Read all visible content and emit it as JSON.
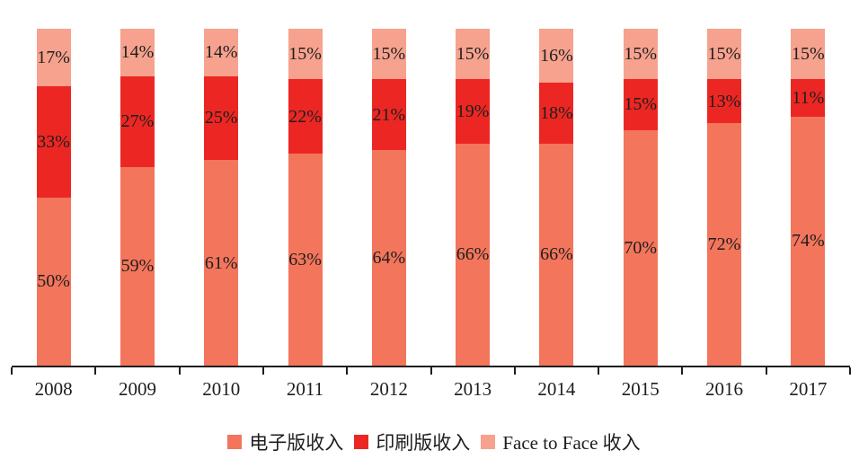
{
  "chart_data": {
    "type": "bar",
    "variant": "stacked-100-percent-column",
    "title": "",
    "xlabel": "",
    "ylabel": "",
    "ylim": [
      0,
      100
    ],
    "grid": false,
    "data_labels": true,
    "value_suffix": "%",
    "legend_position": "bottom",
    "axis_color": "#1e1e1e",
    "label_color": "#1e1e1e",
    "categories": [
      "2008",
      "2009",
      "2010",
      "2011",
      "2012",
      "2013",
      "2014",
      "2015",
      "2016",
      "2017"
    ],
    "series": [
      {
        "name": "电子版收入",
        "color": "#F3755B",
        "values": [
          50,
          59,
          61,
          63,
          64,
          66,
          66,
          70,
          72,
          74
        ]
      },
      {
        "name": "印刷版收入",
        "color": "#EC2723",
        "values": [
          33,
          27,
          25,
          22,
          21,
          19,
          18,
          15,
          13,
          11
        ]
      },
      {
        "name": "Face to Face 收入",
        "color": "#F6A28E",
        "values": [
          17,
          14,
          14,
          15,
          15,
          15,
          16,
          15,
          15,
          15
        ]
      }
    ]
  }
}
